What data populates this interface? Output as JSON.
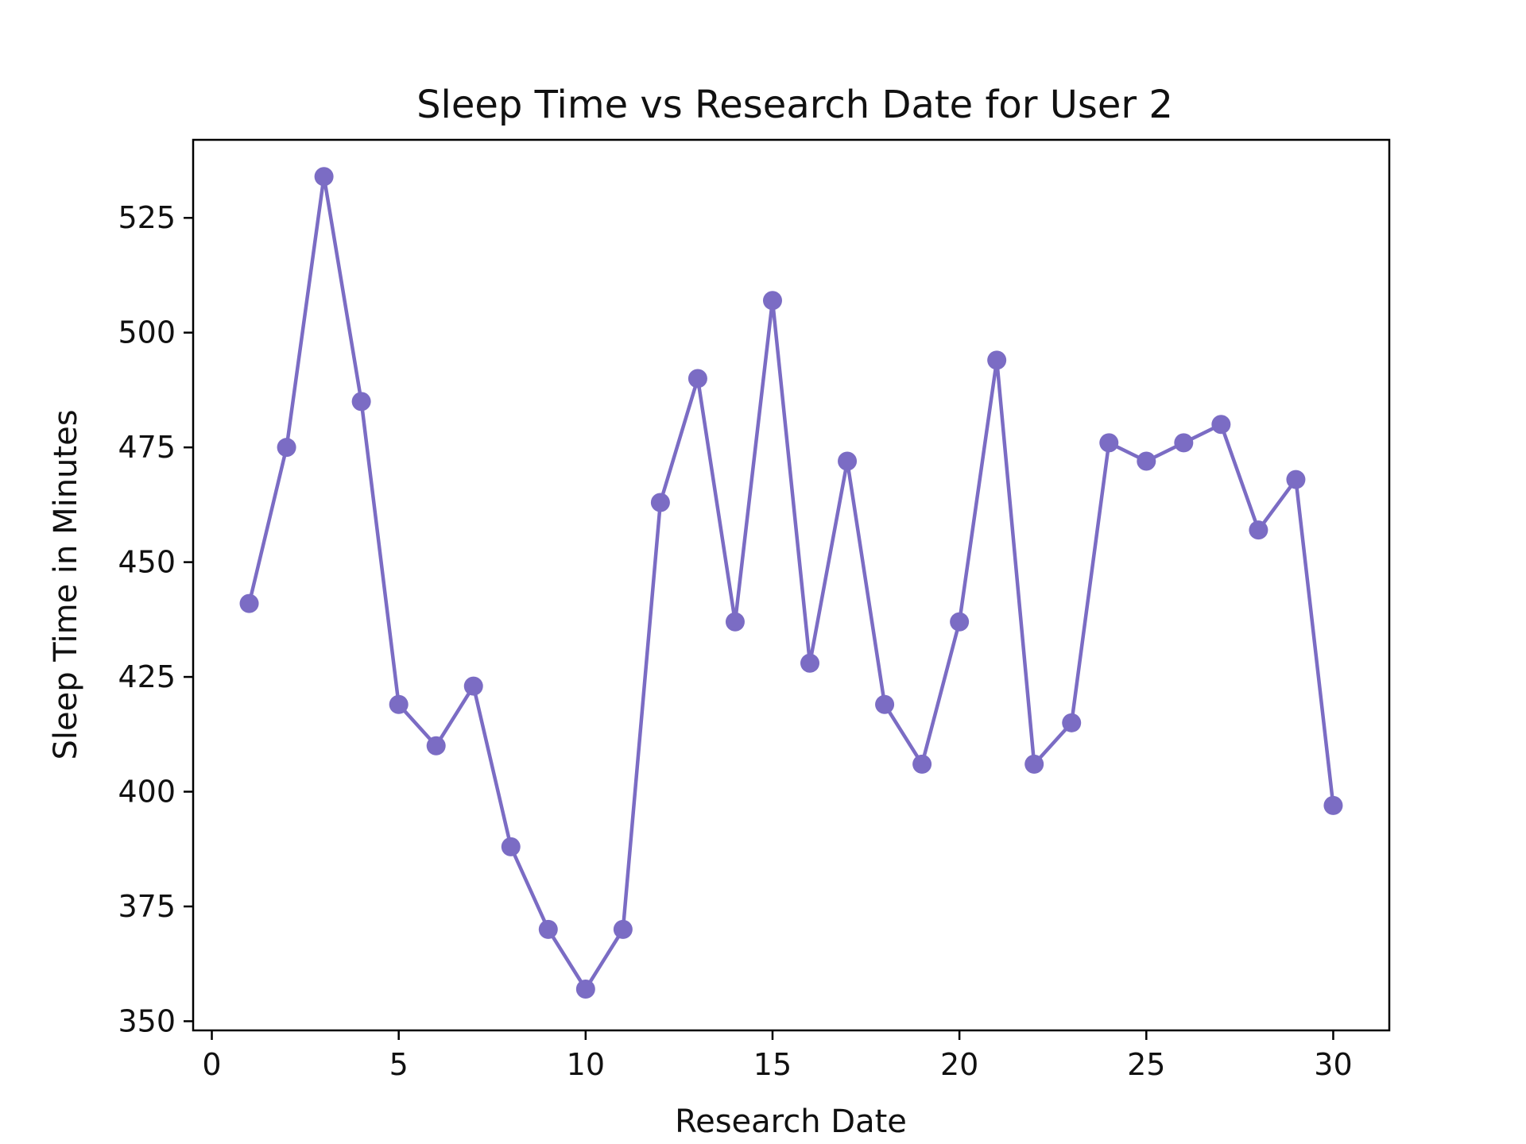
{
  "chart_data": {
    "type": "line",
    "title": "Sleep Time vs Research Date for User 2",
    "xlabel": "Research Date",
    "ylabel": "Sleep Time in Minutes",
    "xlim": [
      -0.5,
      31.5
    ],
    "ylim": [
      348,
      542
    ],
    "x_ticks": [
      0,
      5,
      10,
      15,
      20,
      25,
      30
    ],
    "y_ticks": [
      350,
      375,
      400,
      425,
      450,
      475,
      500,
      525
    ],
    "grid": false,
    "legend": "none",
    "colors": {
      "series": "#7B6CC4",
      "axes": "#000000",
      "background": "#ffffff"
    },
    "series": [
      {
        "x": [
          1,
          2,
          3,
          4,
          5,
          6,
          7,
          8,
          9,
          10,
          11,
          12,
          13,
          14,
          15,
          16,
          17,
          18,
          19,
          20,
          21,
          22,
          23,
          24,
          25,
          26,
          27,
          28,
          29,
          30
        ],
        "values": [
          441,
          475,
          534,
          485,
          419,
          410,
          423,
          388,
          370,
          357,
          370,
          463,
          490,
          437,
          507,
          428,
          472,
          419,
          406,
          437,
          494,
          406,
          415,
          476,
          472,
          476,
          480,
          457,
          468,
          397
        ]
      }
    ]
  }
}
